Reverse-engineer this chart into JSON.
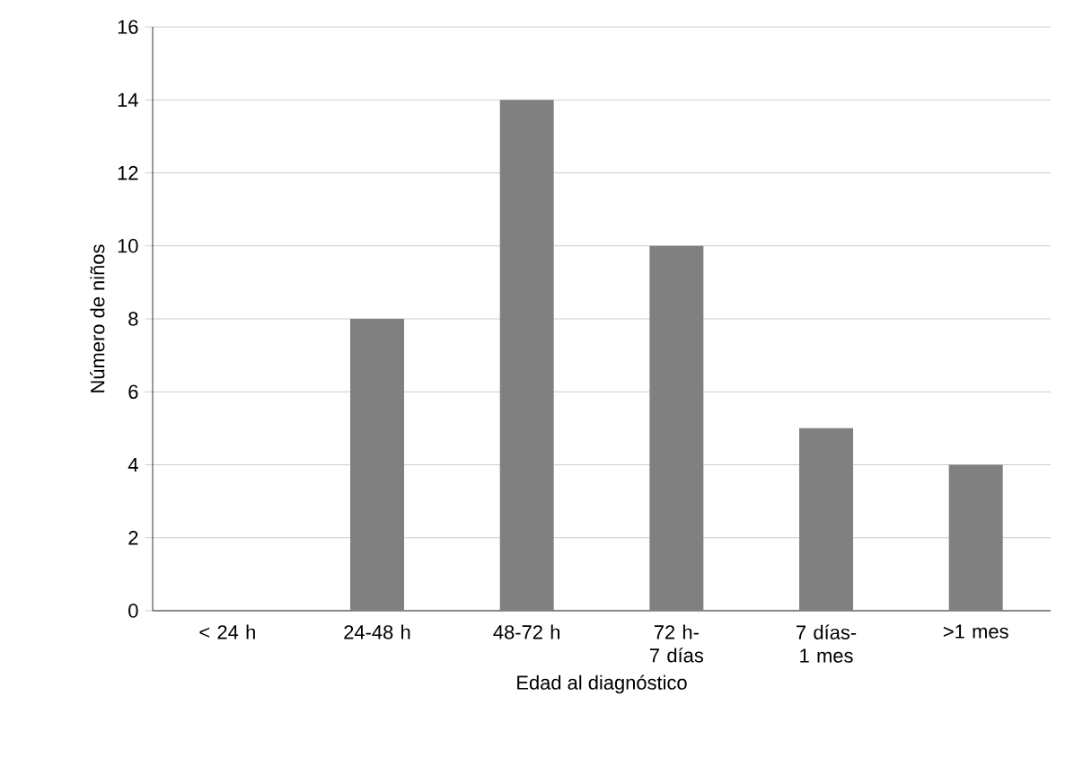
{
  "chart_data": {
    "type": "bar",
    "xlabel": "Edad al diagnóstico",
    "ylabel": "Número de niños",
    "categories": [
      "< 24 h",
      "24-48 h",
      "48-72 h",
      "72 h- 7 días",
      "7 días- 1 mes",
      ">1 mes"
    ],
    "values": [
      0,
      8,
      14,
      10,
      5,
      4
    ],
    "color": "#808080",
    "ylim": [
      0,
      16
    ],
    "yticks": [
      0,
      2,
      4,
      6,
      8,
      10,
      12,
      14,
      16
    ],
    "grid": "y"
  }
}
